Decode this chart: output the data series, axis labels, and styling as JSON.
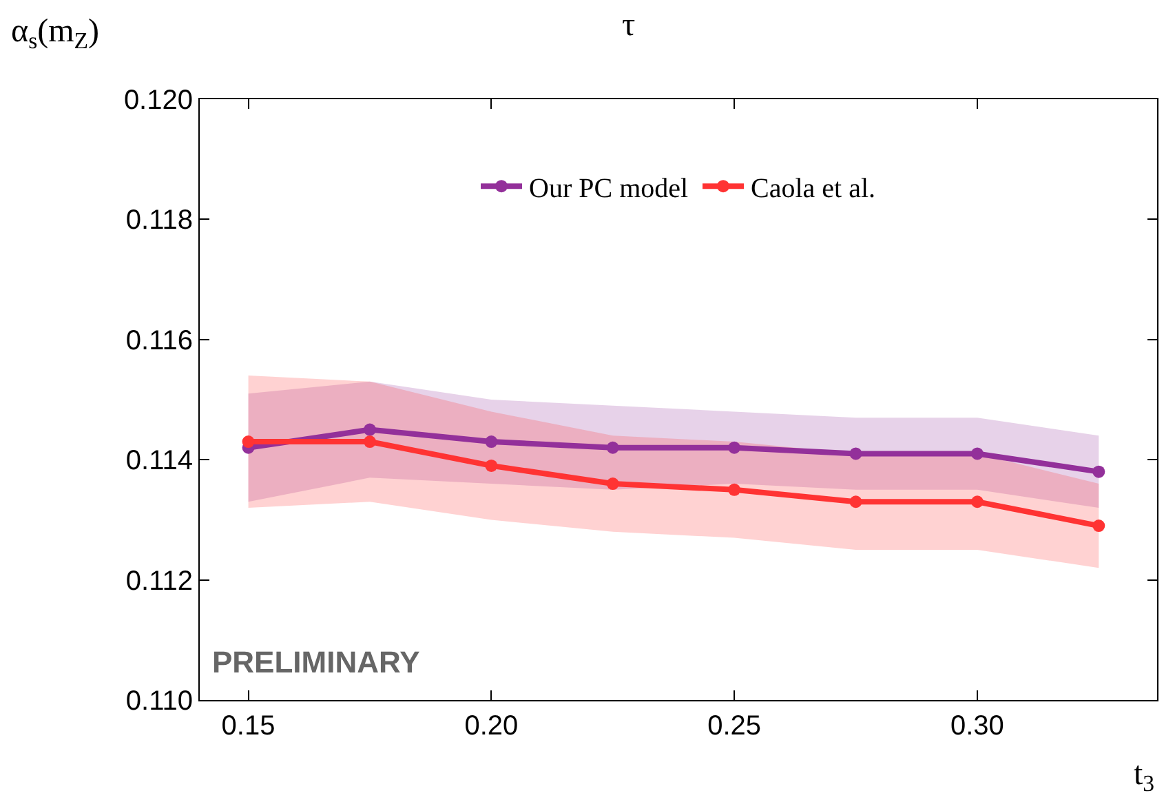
{
  "chart_data": {
    "type": "line",
    "title": "τ",
    "xlabel": "t$_{3}$",
    "ylabel": "α$_{s}$(m$_{Z}$)",
    "x": [
      0.15,
      0.175,
      0.2,
      0.225,
      0.25,
      0.275,
      0.3,
      0.325
    ],
    "series": [
      {
        "name": "Our PC model",
        "color": "#93309a",
        "values": [
          0.1142,
          0.1145,
          0.1143,
          0.1142,
          0.1142,
          0.1141,
          0.1141,
          0.1138
        ],
        "upper": [
          0.1151,
          0.1153,
          0.115,
          0.1149,
          0.1148,
          0.1147,
          0.1147,
          0.1144
        ],
        "lower": [
          0.1133,
          0.1137,
          0.1136,
          0.1135,
          0.1136,
          0.1135,
          0.1135,
          0.1132
        ]
      },
      {
        "name": "Caola et al.",
        "color": "#ff3333",
        "values": [
          0.1143,
          0.1143,
          0.1139,
          0.1136,
          0.1135,
          0.1133,
          0.1133,
          0.1129
        ],
        "upper": [
          0.1154,
          0.1153,
          0.1148,
          0.1144,
          0.1143,
          0.1141,
          0.1141,
          0.1136
        ],
        "lower": [
          0.1132,
          0.1133,
          0.113,
          0.1128,
          0.1127,
          0.1125,
          0.1125,
          0.1122
        ]
      }
    ],
    "xlim": [
      0.14,
      0.337
    ],
    "ylim": [
      0.11,
      0.12
    ],
    "xticks": [
      0.15,
      {
        "value": 0.2,
        "label": "0.20"
      },
      0.25,
      {
        "value": 0.3,
        "label": "0.30"
      }
    ],
    "yticks": [
      {
        "value": 0.11,
        "label": "0.110"
      },
      0.112,
      0.114,
      0.116,
      0.118,
      {
        "value": 0.12,
        "label": "0.120"
      }
    ],
    "annotations": [
      "PRELIMINARY"
    ],
    "legend": "top",
    "marker": "circle",
    "line_style": "solid"
  }
}
